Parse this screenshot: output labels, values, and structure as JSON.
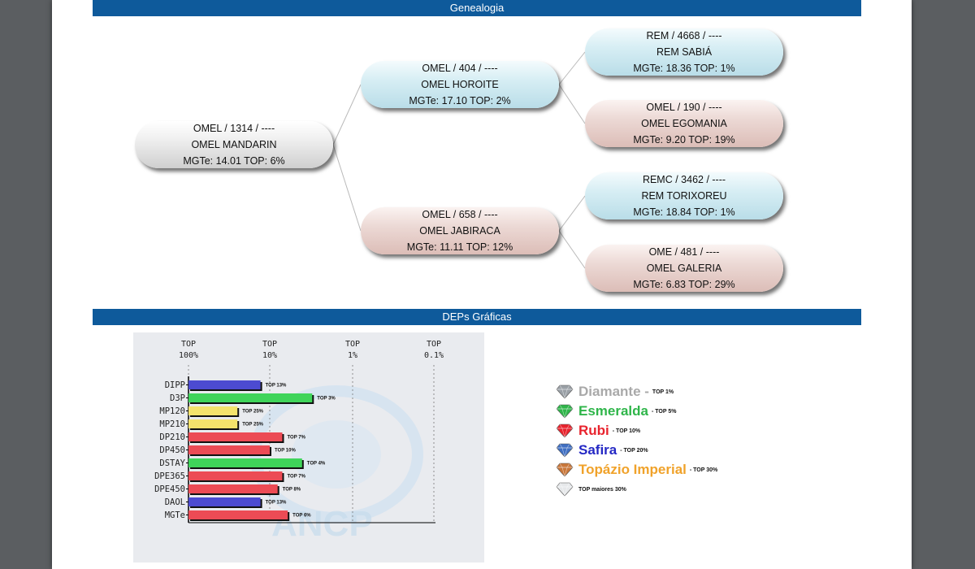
{
  "sections": {
    "genealogy": "Genealogia",
    "deps": "DEPs Gráficas"
  },
  "animals": {
    "subject": {
      "id": "OMEL / 1314 / ----",
      "name": "OMEL MANDARIN",
      "stats": "MGTe: 14.01   TOP: 6%"
    },
    "sire": {
      "id": "OMEL / 404 / ----",
      "name": "OMEL HOROITE",
      "stats": "MGTe: 17.10   TOP: 2%"
    },
    "dam": {
      "id": "OMEL / 658 / ----",
      "name": "OMEL JABIRACA",
      "stats": "MGTe: 11.11   TOP: 12%"
    },
    "sire_sire": {
      "id": "REM / 4668 / ----",
      "name": "REM SABIÁ",
      "stats": "MGTe: 18.36   TOP: 1%"
    },
    "sire_dam": {
      "id": "OMEL / 190 / ----",
      "name": "OMEL EGOMANIA",
      "stats": "MGTe: 9.20   TOP: 19%"
    },
    "dam_sire": {
      "id": "REMC / 3462 / ----",
      "name": "REM TORIXOREU",
      "stats": "MGTe: 18.84   TOP: 1%"
    },
    "dam_dam": {
      "id": "OME / 481 / ----",
      "name": "OMEL GALERIA",
      "stats": "MGTe: 6.83   TOP: 29%"
    }
  },
  "chart_data": {
    "type": "bar",
    "orientation": "horizontal",
    "x_ticks": [
      {
        "top": "TOP",
        "bottom": "100%"
      },
      {
        "top": "TOP",
        "bottom": "10%"
      },
      {
        "top": "TOP",
        "bottom": "1%"
      },
      {
        "top": "TOP",
        "bottom": "0.1%"
      }
    ],
    "categories": [
      "DIPP",
      "D3P",
      "MP120",
      "MP210",
      "DP210",
      "DP450",
      "DSTAY",
      "DPE365",
      "DPE450",
      "DAOL",
      "MGTe"
    ],
    "values": [
      13,
      3,
      25,
      25,
      7,
      10,
      4,
      7,
      8,
      13,
      6
    ],
    "labels": [
      "TOP 13%",
      "TOP 3%",
      "TOP 25%",
      "TOP 25%",
      "TOP 7%",
      "TOP 10%",
      "TOP 4%",
      "TOP 7%",
      "TOP 8%",
      "TOP 13%",
      "TOP 6%"
    ],
    "tiers": [
      "safira",
      "esmeralda",
      "topazio",
      "topazio",
      "rubi",
      "rubi",
      "esmeralda",
      "rubi",
      "rubi",
      "safira",
      "rubi"
    ],
    "colors": {
      "safira": "#4c4bd1",
      "esmeralda": "#3fd45a",
      "topazio": "#f4e36c",
      "rubi": "#ec4b55"
    },
    "x_scale": "log"
  },
  "legend": [
    {
      "name": "Diamante",
      "suffix": " -",
      "tag": "TOP 1%",
      "color": "#a9a9a9",
      "gem": "#9aa0a6"
    },
    {
      "name": "Esmeralda",
      "suffix": "",
      "tag": "- TOP 5%",
      "color": "#2fb54a",
      "gem": "#2fb54a"
    },
    {
      "name": "Rubi",
      "suffix": "",
      "tag": "- TOP 10%",
      "color": "#e8232d",
      "gem": "#e8232d"
    },
    {
      "name": "Safira",
      "suffix": "",
      "tag": "- TOP 20%",
      "color": "#2428c4",
      "gem": "#3f6fc2"
    },
    {
      "name": "Topázio Imperial",
      "suffix": "",
      "tag": "- TOP 30%",
      "color": "#f0a22a",
      "gem": "#c9773a"
    }
  ],
  "legend_footer": "TOP maiores 30%"
}
